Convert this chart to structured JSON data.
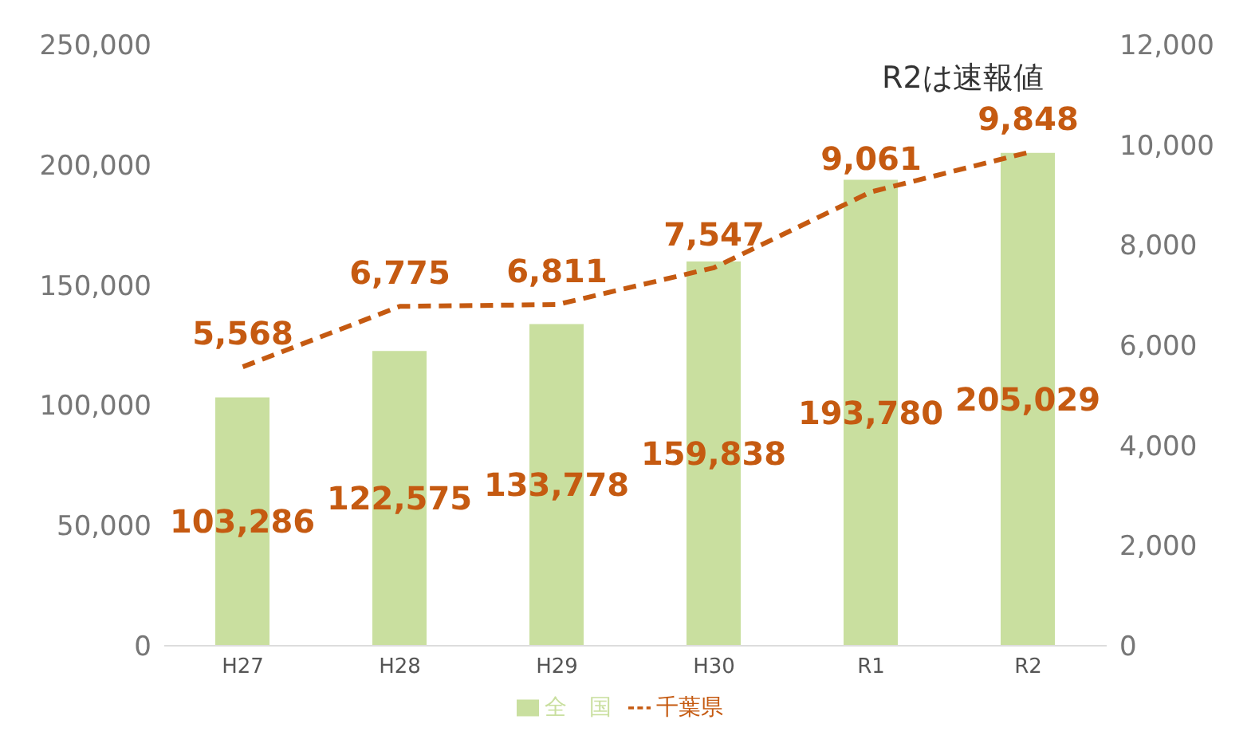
{
  "chart_data": {
    "type": "bar",
    "categories": [
      "H27",
      "H28",
      "H29",
      "H30",
      "R1",
      "R2"
    ],
    "series": [
      {
        "name": "全　国",
        "color": "#c9df9f",
        "values": [
          103286,
          122575,
          133778,
          159838,
          193780,
          205029
        ],
        "value_labels": [
          "103,286",
          "122,575",
          "133,778",
          "159,838",
          "193,780",
          "205,029"
        ]
      },
      {
        "name": "千葉県",
        "type": "line",
        "axis": "y2",
        "color": "#c55a11",
        "line_style": "dashed",
        "values": [
          5568,
          6775,
          6811,
          7547,
          9061,
          9848
        ],
        "value_labels": [
          "5,568",
          "6,775",
          "6,811",
          "7,547",
          "9,061",
          "9,848"
        ]
      }
    ],
    "ylim": [
      0,
      250000
    ],
    "yticks": [
      0,
      {
        "value": 50000,
        "label": "50,000"
      },
      {
        "value": 100000,
        "label": "100,000"
      },
      {
        "value": 150000,
        "label": "150,000"
      },
      {
        "value": 200000,
        "label": "200,000"
      },
      {
        "value": 250000,
        "label": "250,000"
      }
    ],
    "y2lim": [
      0,
      12000
    ],
    "y2ticks": [
      0,
      {
        "value": 2000,
        "label": "2,000"
      },
      {
        "value": 4000,
        "label": "4,000"
      },
      {
        "value": 6000,
        "label": "6,000"
      },
      {
        "value": 8000,
        "label": "8,000"
      },
      {
        "value": 10000,
        "label": "10,000"
      },
      {
        "value": 12000,
        "label": "12,000"
      }
    ],
    "annotations": [
      "R2は速報値"
    ],
    "legend": "bottom",
    "grid": false,
    "marker": "none"
  }
}
